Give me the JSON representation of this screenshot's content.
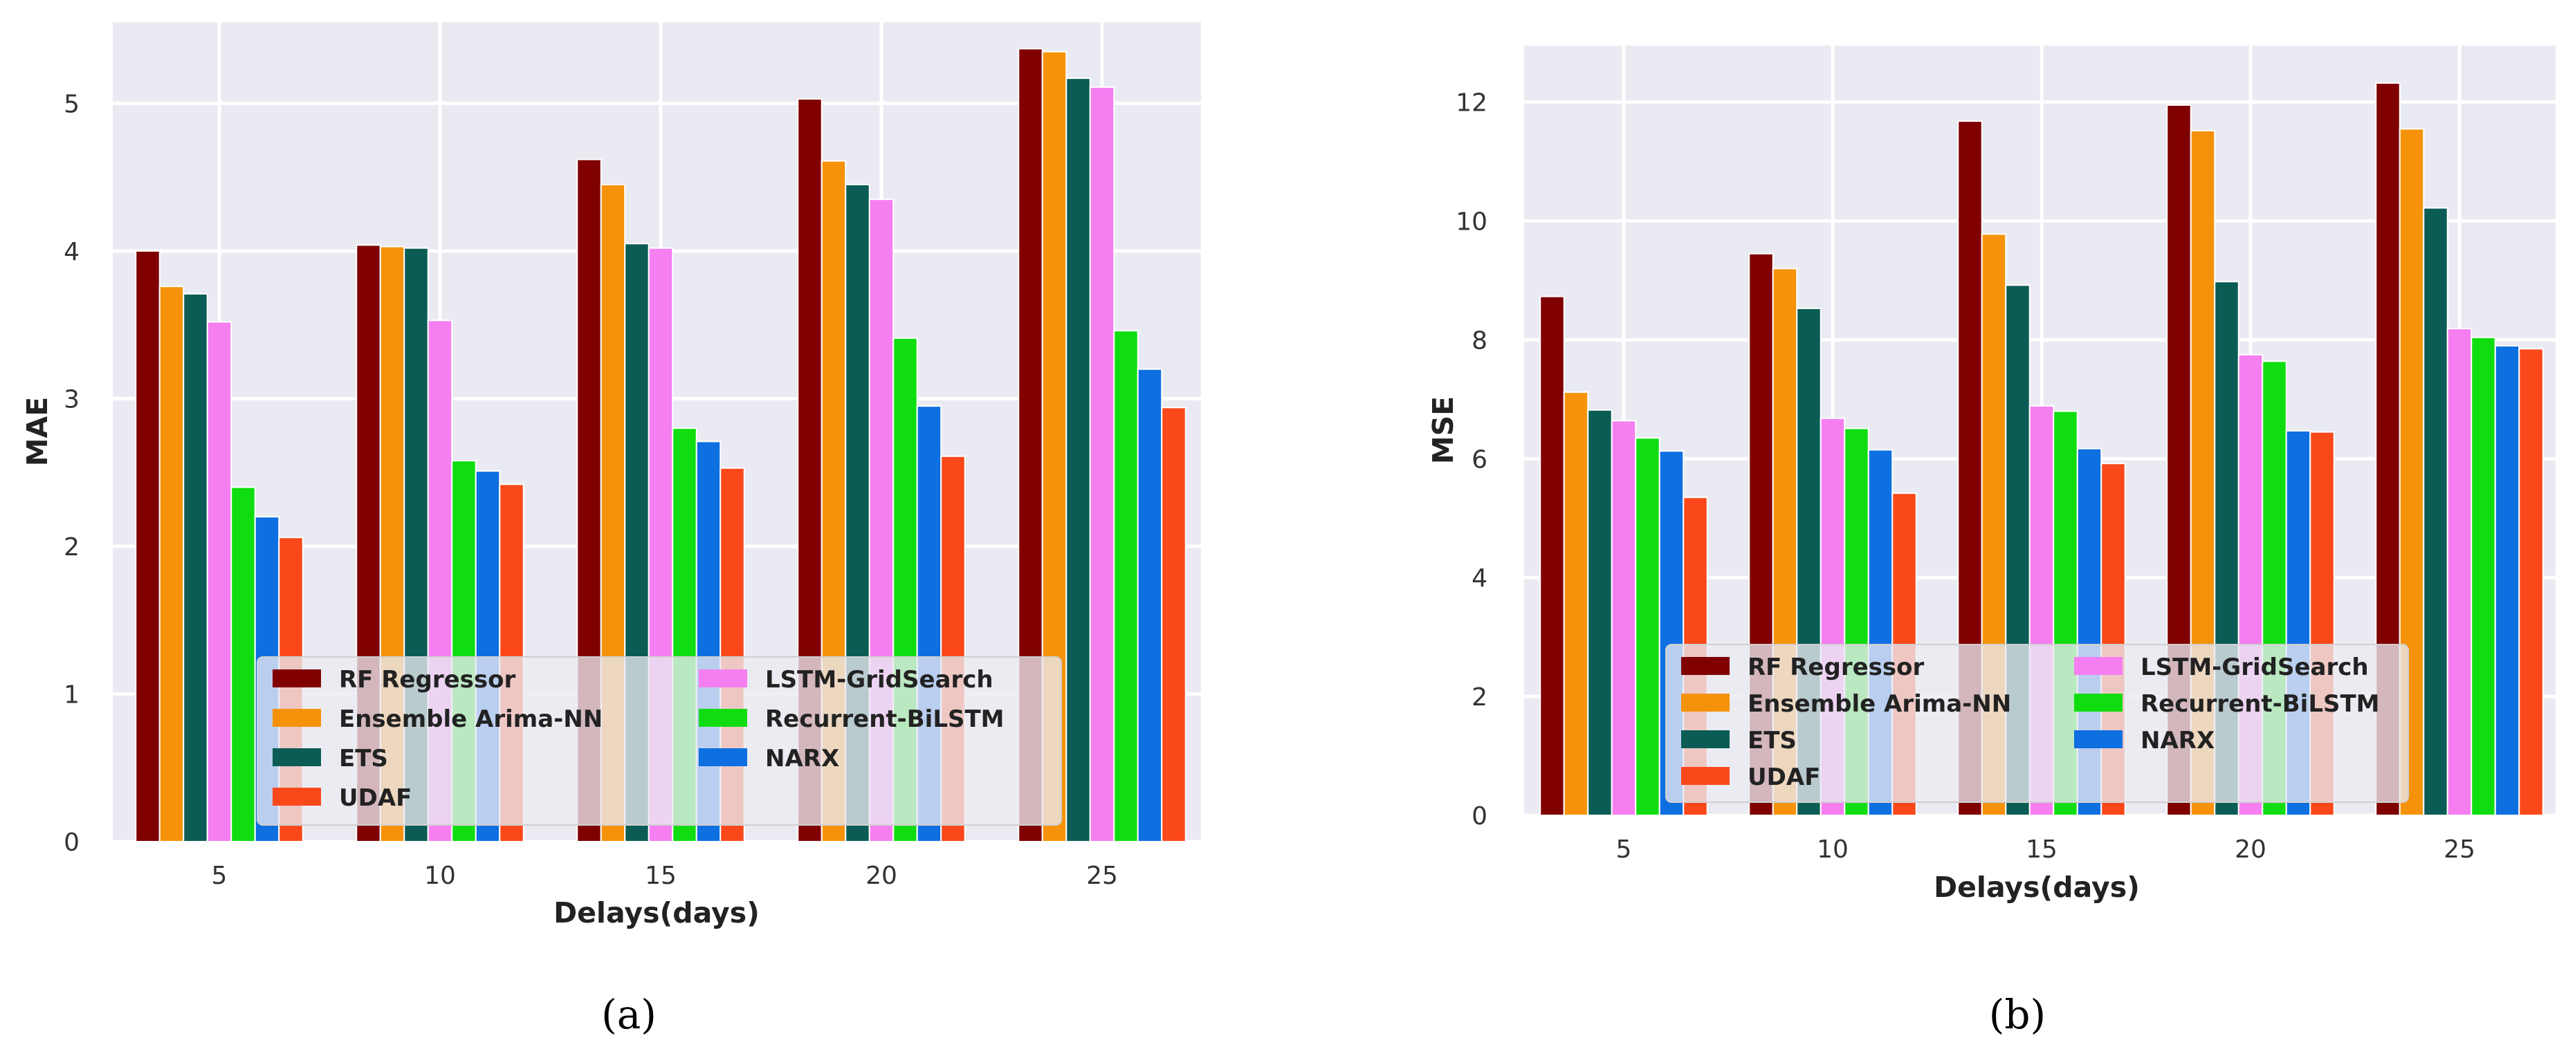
{
  "legend_order": [
    0,
    3,
    1,
    4,
    2,
    5,
    6
  ],
  "chart_data": [
    {
      "type": "bar",
      "caption": "(a)",
      "xlabel": "Delays(days)",
      "ylabel": "MAE",
      "categories": [
        "5",
        "10",
        "15",
        "20",
        "25"
      ],
      "yticks": [
        0,
        1,
        2,
        3,
        4,
        5
      ],
      "ylim": [
        0,
        5.55
      ],
      "grid": true,
      "legend_position": "bottom-center",
      "series": [
        {
          "name": "RF Regressor",
          "color": "#800000",
          "values": [
            4.0,
            4.04,
            4.62,
            5.03,
            5.37
          ]
        },
        {
          "name": "Ensemble Arima-NN",
          "color": "#f5920a",
          "values": [
            3.76,
            4.03,
            4.45,
            4.61,
            5.35
          ]
        },
        {
          "name": "ETS",
          "color": "#0b5c55",
          "values": [
            3.71,
            4.02,
            4.05,
            4.45,
            5.17
          ]
        },
        {
          "name": "LSTM-GridSearch",
          "color": "#f57ff0",
          "values": [
            3.52,
            3.53,
            4.02,
            4.35,
            5.11
          ]
        },
        {
          "name": "Recurrent-BiLSTM",
          "color": "#10dd10",
          "values": [
            2.4,
            2.58,
            2.8,
            3.41,
            3.46
          ]
        },
        {
          "name": "NARX",
          "color": "#0e6fe1",
          "values": [
            2.2,
            2.51,
            2.71,
            2.95,
            3.2
          ]
        },
        {
          "name": "UDAF",
          "color": "#fa481b",
          "values": [
            2.06,
            2.42,
            2.53,
            2.61,
            2.94
          ]
        }
      ]
    },
    {
      "type": "bar",
      "caption": "(b)",
      "xlabel": "Delays(days)",
      "ylabel": "MSE",
      "categories": [
        "5",
        "10",
        "15",
        "20",
        "25"
      ],
      "yticks": [
        0,
        2,
        4,
        6,
        8,
        10,
        12
      ],
      "ylim": [
        0,
        12.95
      ],
      "grid": true,
      "legend_position": "bottom-center",
      "series": [
        {
          "name": "RF Regressor",
          "color": "#800000",
          "values": [
            8.73,
            9.45,
            11.68,
            11.95,
            12.32
          ]
        },
        {
          "name": "Ensemble Arima-NN",
          "color": "#f5920a",
          "values": [
            7.12,
            9.2,
            9.78,
            11.52,
            11.55
          ]
        },
        {
          "name": "ETS",
          "color": "#0b5c55",
          "values": [
            6.82,
            8.53,
            8.92,
            8.98,
            10.22
          ]
        },
        {
          "name": "LSTM-GridSearch",
          "color": "#f57ff0",
          "values": [
            6.64,
            6.68,
            6.89,
            7.75,
            8.19
          ]
        },
        {
          "name": "Recurrent-BiLSTM",
          "color": "#10dd10",
          "values": [
            6.35,
            6.51,
            6.8,
            7.64,
            8.04
          ]
        },
        {
          "name": "NARX",
          "color": "#0e6fe1",
          "values": [
            6.13,
            6.15,
            6.17,
            6.47,
            7.9
          ]
        },
        {
          "name": "UDAF",
          "color": "#fa481b",
          "values": [
            5.35,
            5.42,
            5.92,
            6.45,
            7.85
          ]
        }
      ]
    }
  ]
}
